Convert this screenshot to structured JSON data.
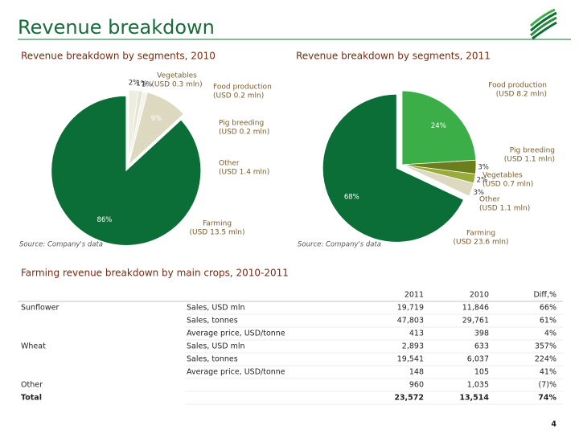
{
  "header": {
    "title": "Revenue breakdown"
  },
  "chart_data": [
    {
      "type": "pie",
      "title": "Revenue breakdown by segments, 2010",
      "categories": [
        "Vegetables",
        "Food production",
        "Pig breeding",
        "Other",
        "Farming"
      ],
      "amounts": [
        "(USD 0.3 mln)",
        "(USD 0.2 mln)",
        "(USD 0.2 mln)",
        "(USD 1.4 mln)",
        "(USD 13.5 mln)"
      ],
      "values": [
        2,
        1,
        1,
        9,
        86
      ],
      "value_labels": [
        "2%",
        "1%",
        "1%",
        "9%",
        "86%"
      ],
      "colors": [
        "#eeeee0",
        "#e6e6d6",
        "#f4f4ea",
        "#ddd8c0",
        "#0b6e36"
      ],
      "source": "Source: Company's data"
    },
    {
      "type": "pie",
      "title": "Revenue breakdown by segments, 2011",
      "categories": [
        "Food production",
        "Pig breeding",
        "Vegetables",
        "Other",
        "Farming"
      ],
      "amounts": [
        "(USD 8.2 mln)",
        "(USD 1.1 mln)",
        "(USD 0.7 mln)",
        "(USD 1.1 mln)",
        "(USD 23.6 mln)"
      ],
      "values": [
        24,
        3,
        2,
        3,
        68
      ],
      "value_labels": [
        "24%",
        "3%",
        "2%",
        "3%",
        "68%"
      ],
      "colors": [
        "#3cae48",
        "#6b7d1c",
        "#9aab3a",
        "#ddd8c0",
        "#0b6e36"
      ],
      "source": "Source: Company's data"
    }
  ],
  "table": {
    "title": "Farming revenue breakdown by main crops, 2010-2011",
    "columns": [
      "2011",
      "2010",
      "Diff,%"
    ],
    "rows": [
      {
        "group": "Sunflower",
        "metric": "Sales, USD mln",
        "cells": [
          "19,719",
          "11,846",
          "66%"
        ]
      },
      {
        "metric": "Sales, tonnes",
        "cells": [
          "47,803",
          "29,761",
          "61%"
        ]
      },
      {
        "metric": "Average price, USD/tonne",
        "cells": [
          "413",
          "398",
          "4%"
        ]
      },
      {
        "group": "Wheat",
        "metric": "Sales, USD mln",
        "cells": [
          "2,893",
          "633",
          "357%"
        ]
      },
      {
        "metric": "Sales, tonnes",
        "cells": [
          "19,541",
          "6,037",
          "224%"
        ]
      },
      {
        "metric": "Average price, USD/tonne",
        "cells": [
          "148",
          "105",
          "41%"
        ]
      },
      {
        "group": "Other",
        "cells": [
          "960",
          "1,035",
          "(7)%"
        ]
      },
      {
        "group": "Total",
        "cells": [
          "23,572",
          "13,514",
          "74%"
        ],
        "bold": true
      }
    ]
  },
  "page_number": "4"
}
